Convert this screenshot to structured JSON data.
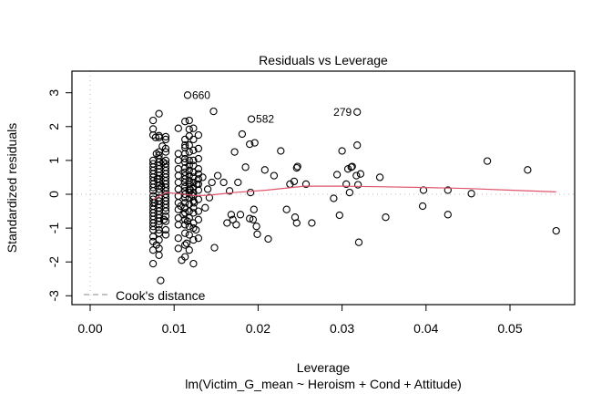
{
  "chart_data": {
    "type": "scatter",
    "title": "Residuals vs Leverage",
    "xlabel": "Leverage",
    "subtitle": "lm(Victim_G_mean ~ Heroism + Cond + Attitude)",
    "ylabel": "Standardized residuals",
    "xlim": [
      -0.0023,
      0.0577
    ],
    "ylim": [
      -3.3,
      3.6
    ],
    "x_ticks": [
      0.0,
      0.01,
      0.02,
      0.03,
      0.04,
      0.05
    ],
    "x_tick_labels": [
      "0.00",
      "0.01",
      "0.02",
      "0.03",
      "0.04",
      "0.05"
    ],
    "y_ticks": [
      3,
      2,
      1,
      0,
      -1,
      -2,
      -3
    ],
    "y_tick_labels": [
      "3",
      "2",
      "1",
      "0",
      "-1",
      "-2",
      "-3"
    ],
    "grid": false,
    "reference_lines": {
      "horizontal_zero": true,
      "vertical_zero": true,
      "style": "dotted",
      "color": "#bebebe"
    },
    "legend": {
      "label": "Cook's distance",
      "placement": "bottom-left",
      "style": "dashed",
      "color": "#a0a0a0"
    },
    "smoother": {
      "color": "#df536b",
      "x": [
        0.0075,
        0.009,
        0.0105,
        0.0125,
        0.014,
        0.0175,
        0.021,
        0.0255,
        0.03,
        0.035,
        0.04,
        0.045,
        0.05,
        0.0555
      ],
      "y": [
        -0.16,
        0.05,
        0.02,
        -0.04,
        -0.03,
        0.06,
        0.12,
        0.24,
        0.24,
        0.22,
        0.2,
        0.17,
        0.12,
        0.07
      ]
    },
    "labeled_points": [
      {
        "label": "660",
        "x": 0.0116,
        "y": 2.93
      },
      {
        "label": "582",
        "x": 0.0192,
        "y": 2.22
      },
      {
        "label": "279",
        "x": 0.0318,
        "y": 2.43
      }
    ],
    "points": {
      "x": [
        0.0075,
        0.0075,
        0.0075,
        0.0075,
        0.0075,
        0.0075,
        0.0075,
        0.0075,
        0.0075,
        0.0075,
        0.0075,
        0.0075,
        0.0075,
        0.0075,
        0.0075,
        0.0075,
        0.0075,
        0.0075,
        0.0075,
        0.0075,
        0.0075,
        0.0075,
        0.0075,
        0.0075,
        0.0075,
        0.0075,
        0.0075,
        0.0075,
        0.0082,
        0.0082,
        0.0082,
        0.0082,
        0.0082,
        0.0082,
        0.0082,
        0.0082,
        0.0082,
        0.0082,
        0.0082,
        0.0082,
        0.0082,
        0.0082,
        0.0082,
        0.0082,
        0.0082,
        0.0082,
        0.0082,
        0.0082,
        0.0082,
        0.0082,
        0.0082,
        0.0082,
        0.0082,
        0.0082,
        0.0082,
        0.0082,
        0.0082,
        0.0082,
        0.009,
        0.009,
        0.009,
        0.009,
        0.009,
        0.009,
        0.009,
        0.009,
        0.009,
        0.009,
        0.009,
        0.009,
        0.009,
        0.009,
        0.009,
        0.009,
        0.009,
        0.009,
        0.009,
        0.009,
        0.009,
        0.009,
        0.009,
        0.009,
        0.0078,
        0.0086,
        0.0079,
        0.0087,
        0.008,
        0.0085,
        0.0077,
        0.0088,
        0.0079,
        0.0084,
        0.0105,
        0.0105,
        0.0105,
        0.0105,
        0.0105,
        0.0105,
        0.0105,
        0.0105,
        0.0105,
        0.0105,
        0.0105,
        0.0105,
        0.0105,
        0.0105,
        0.0113,
        0.0113,
        0.0113,
        0.0113,
        0.0113,
        0.0113,
        0.0113,
        0.0113,
        0.0113,
        0.0113,
        0.0113,
        0.0113,
        0.0113,
        0.0113,
        0.0113,
        0.0113,
        0.0113,
        0.0113,
        0.0113,
        0.0113,
        0.0113,
        0.0113,
        0.0113,
        0.0113,
        0.0118,
        0.0118,
        0.0118,
        0.0118,
        0.0118,
        0.0118,
        0.0118,
        0.0118,
        0.0118,
        0.0118,
        0.0118,
        0.0118,
        0.0118,
        0.0118,
        0.0118,
        0.0118,
        0.0118,
        0.0118,
        0.0118,
        0.0118,
        0.0123,
        0.0123,
        0.0123,
        0.0123,
        0.0123,
        0.0123,
        0.0123,
        0.0123,
        0.0123,
        0.0123,
        0.0123,
        0.0123,
        0.0123,
        0.0123,
        0.0123,
        0.0123,
        0.0123,
        0.0123,
        0.0129,
        0.0129,
        0.0129,
        0.0129,
        0.0129,
        0.0129,
        0.0129,
        0.0129,
        0.0129,
        0.0129,
        0.0129,
        0.0129,
        0.0108,
        0.0116,
        0.0121,
        0.0111,
        0.0126,
        0.0119,
        0.0109,
        0.0124,
        0.0115,
        0.0127,
        0.0134,
        0.014,
        0.0147,
        0.0145,
        0.0137,
        0.0152,
        0.0148,
        0.0142,
        0.0159,
        0.0166,
        0.0172,
        0.0168,
        0.0179,
        0.0181,
        0.0176,
        0.0163,
        0.0185,
        0.0174,
        0.017,
        0.019,
        0.0191,
        0.0196,
        0.0195,
        0.0194,
        0.0199,
        0.0198,
        0.019,
        0.0212,
        0.0208,
        0.0219,
        0.0227,
        0.0234,
        0.0238,
        0.0246,
        0.0244,
        0.0247,
        0.0243,
        0.0246,
        0.0257,
        0.0264,
        0.029,
        0.0294,
        0.0297,
        0.0305,
        0.03,
        0.0307,
        0.0311,
        0.0312,
        0.0309,
        0.0318,
        0.0317,
        0.0322,
        0.032,
        0.0319,
        0.0345,
        0.0352,
        0.0397,
        0.0396,
        0.0426,
        0.0426,
        0.0454,
        0.0473,
        0.0521,
        0.0555
      ],
      "y": [
        2.18,
        1.93,
        1.75,
        1.0,
        0.9,
        0.8,
        0.7,
        0.6,
        0.5,
        0.4,
        0.3,
        0.2,
        0.1,
        -0.05,
        -0.15,
        -0.25,
        -0.35,
        -0.45,
        -0.55,
        -0.65,
        -0.75,
        -0.85,
        -0.95,
        -1.05,
        -1.25,
        -1.4,
        -1.65,
        -2.05,
        2.38,
        1.73,
        1.68,
        1.25,
        1.15,
        1.05,
        0.95,
        0.85,
        0.75,
        0.65,
        0.55,
        0.45,
        0.35,
        0.25,
        0.15,
        0.05,
        -0.1,
        -0.2,
        -0.3,
        -0.4,
        -0.5,
        -0.6,
        -0.7,
        -0.8,
        -0.9,
        -1.05,
        -1.15,
        -1.35,
        -1.6,
        -1.8,
        1.7,
        1.62,
        1.35,
        1.25,
        1.0,
        0.9,
        0.8,
        0.7,
        0.6,
        0.5,
        0.4,
        0.3,
        0.2,
        0.1,
        0.0,
        -0.1,
        -0.2,
        -0.3,
        -0.4,
        -0.5,
        -0.65,
        -0.8,
        -1.05,
        -1.2,
        1.68,
        1.42,
        1.2,
        0.95,
        0.45,
        0.22,
        -0.25,
        -0.75,
        -1.5,
        -2.55,
        1.95,
        1.2,
        1.0,
        0.75,
        0.55,
        0.35,
        0.15,
        -0.05,
        -0.25,
        -0.45,
        -0.7,
        -0.9,
        -1.3,
        -1.6,
        2.15,
        1.62,
        1.45,
        1.38,
        1.2,
        1.05,
        0.95,
        0.78,
        0.65,
        0.55,
        0.45,
        0.35,
        0.22,
        0.1,
        0.0,
        -0.1,
        -0.25,
        -0.4,
        -0.55,
        -0.75,
        -0.9,
        -1.15,
        -1.5,
        -1.85,
        2.18,
        1.92,
        1.72,
        1.45,
        1.25,
        1.0,
        0.85,
        0.7,
        0.55,
        0.4,
        0.3,
        0.15,
        0.05,
        -0.1,
        -0.3,
        -0.5,
        -0.7,
        -0.95,
        -1.2,
        -1.65,
        1.95,
        1.62,
        1.3,
        1.0,
        0.85,
        0.65,
        0.5,
        0.35,
        0.2,
        0.05,
        -0.05,
        -0.2,
        -0.4,
        -0.55,
        -0.85,
        -1.0,
        -1.35,
        -2.05,
        1.75,
        1.35,
        1.05,
        0.75,
        0.6,
        0.45,
        0.3,
        0.12,
        -0.15,
        -0.5,
        -0.75,
        -1.3,
        -0.35,
        -0.8,
        -0.02,
        -0.6,
        -1.05,
        0.15,
        -1.95,
        -0.25,
        -1.45,
        0.3,
        0.5,
        0.15,
        2.45,
        0.35,
        -0.4,
        0.55,
        -1.58,
        -0.1,
        0.35,
        0.1,
        1.25,
        -0.6,
        -0.6,
        1.78,
        0.35,
        -0.85,
        0.8,
        -0.9,
        -0.75,
        1.48,
        0.05,
        1.52,
        -0.45,
        -0.75,
        -1.18,
        -0.95,
        -0.72,
        -1.32,
        0.72,
        0.55,
        1.28,
        -0.45,
        0.3,
        0.78,
        -0.68,
        0.82,
        0.38,
        -0.85,
        0.3,
        -0.85,
        -0.12,
        0.58,
        -0.62,
        0.3,
        1.28,
        0.75,
        0.8,
        0.82,
        0.05,
        1.45,
        0.55,
        0.6,
        -1.42,
        0.28,
        0.5,
        -0.68,
        0.12,
        -0.35,
        0.12,
        -0.6,
        0.02,
        0.98,
        0.72,
        -1.08
      ]
    }
  }
}
